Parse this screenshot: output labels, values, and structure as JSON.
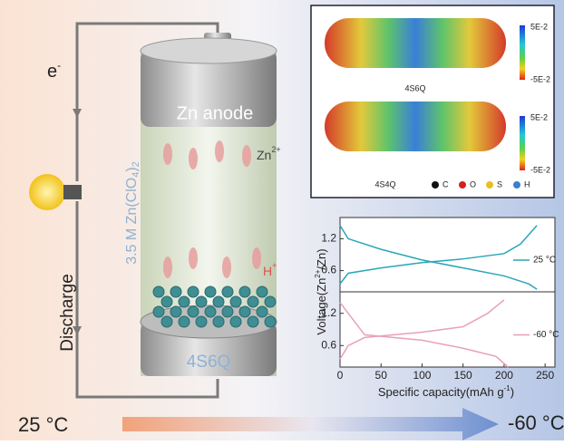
{
  "labels": {
    "electron": {
      "base": "e",
      "sup": "-"
    },
    "discharge": "Discharge",
    "anode": "Zn anode",
    "cathode": "4S6Q",
    "zn_ion": {
      "base": "Zn",
      "sup": "2+"
    },
    "proton": {
      "base": "H",
      "sup": "+"
    },
    "electrolyte": [
      "3.5 M Zn(ClO",
      "4",
      ")",
      "2"
    ],
    "temp_start": "25 °C",
    "temp_end": "-60 °C"
  },
  "esp": {
    "scale_max": "5E-2",
    "scale_min": "-5E-2",
    "molecules": [
      "4S6Q",
      "4S4Q"
    ],
    "legend": [
      "C",
      "O",
      "S",
      "H"
    ]
  },
  "chart": {
    "type": "line",
    "ylabel": [
      "Voltage(Zn",
      "2+",
      "/Zn)"
    ],
    "xlabel": [
      "Specific capacity(mAh g",
      "-1",
      ")"
    ],
    "xlim": [
      0,
      262
    ],
    "xticks": [
      0,
      50,
      100,
      150,
      200,
      250
    ],
    "ylim": [
      0.2,
      1.6
    ],
    "yticks": [
      0.6,
      1.2
    ],
    "panels": [
      {
        "name": "25 °C",
        "color": "#2aa6b8",
        "charge": {
          "x": [
            0,
            10,
            50,
            100,
            150,
            200,
            220,
            240
          ],
          "y": [
            0.35,
            0.55,
            0.65,
            0.75,
            0.82,
            0.92,
            1.1,
            1.45
          ]
        },
        "discharge": {
          "x": [
            0,
            10,
            50,
            100,
            150,
            200,
            230,
            240
          ],
          "y": [
            1.45,
            1.2,
            1.0,
            0.8,
            0.65,
            0.5,
            0.35,
            0.25
          ]
        }
      },
      {
        "name": "-60 °C",
        "color": "#e8a0b8",
        "charge": {
          "x": [
            0,
            10,
            30,
            100,
            150,
            180,
            200
          ],
          "y": [
            0.35,
            0.6,
            0.75,
            0.85,
            0.95,
            1.2,
            1.45
          ]
        },
        "discharge": {
          "x": [
            0,
            10,
            30,
            100,
            150,
            190,
            205
          ],
          "y": [
            1.4,
            1.2,
            0.8,
            0.7,
            0.55,
            0.4,
            0.2
          ]
        }
      }
    ]
  }
}
